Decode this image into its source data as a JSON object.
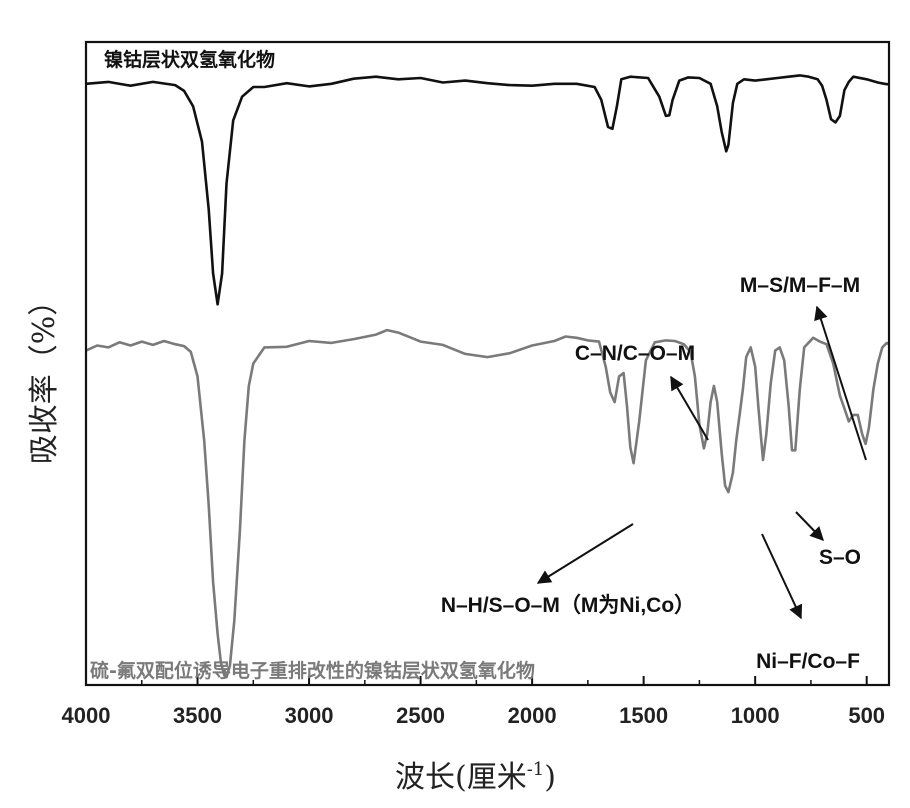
{
  "chart_data": {
    "type": "line",
    "title": "",
    "xlabel": "波长(厘米",
    "xlabel_sup": "-1",
    "xlabel_close": ")",
    "ylabel": "吸收率（%）",
    "xlim": [
      4000,
      400
    ],
    "xticks": [
      4000,
      3500,
      3000,
      2500,
      2000,
      1500,
      1000,
      500
    ],
    "ylim": [
      0,
      100
    ],
    "series": [
      {
        "name": "镍钴层状双氢氧化物",
        "color": "#111111",
        "x": [
          4000,
          3900,
          3800,
          3700,
          3600,
          3560,
          3520,
          3480,
          3450,
          3430,
          3410,
          3390,
          3370,
          3340,
          3300,
          3250,
          3200,
          3100,
          3000,
          2900,
          2800,
          2700,
          2600,
          2500,
          2400,
          2300,
          2200,
          2100,
          2000,
          1900,
          1800,
          1720,
          1690,
          1660,
          1640,
          1620,
          1600,
          1560,
          1480,
          1430,
          1400,
          1385,
          1370,
          1340,
          1300,
          1250,
          1200,
          1170,
          1150,
          1130,
          1120,
          1100,
          1080,
          1050,
          1000,
          950,
          900,
          850,
          800,
          760,
          720,
          700,
          680,
          660,
          640,
          620,
          600,
          580,
          560,
          500,
          450,
          420,
          400
        ],
        "values": [
          93.5,
          93.8,
          93.2,
          93.8,
          93.3,
          92.4,
          90.0,
          84.5,
          74.0,
          64.0,
          59.2,
          64.0,
          78.0,
          87.8,
          91.5,
          93.0,
          93.0,
          93.6,
          93.1,
          93.5,
          94.3,
          94.6,
          94.2,
          94.4,
          93.7,
          94.0,
          93.6,
          93.3,
          93.2,
          93.5,
          93.5,
          93.0,
          91.0,
          86.8,
          86.5,
          90.0,
          94.2,
          94.6,
          94.4,
          91.5,
          88.5,
          88.6,
          91.0,
          94.0,
          94.5,
          94.4,
          93.5,
          90.0,
          86.0,
          83.0,
          84.0,
          90.5,
          93.5,
          94.2,
          94.0,
          94.2,
          94.4,
          94.6,
          94.8,
          94.6,
          94.2,
          93.2,
          91.0,
          88.0,
          87.5,
          88.5,
          92.5,
          93.8,
          94.6,
          94.2,
          93.7,
          93.5,
          93.4
        ]
      },
      {
        "name": "硫-氟双配位诱导电子重排改性的镍钴层状双氢氧化物",
        "color": "#7a7a7a",
        "x": [
          4000,
          3950,
          3900,
          3850,
          3800,
          3750,
          3700,
          3650,
          3600,
          3560,
          3530,
          3500,
          3470,
          3450,
          3430,
          3410,
          3395,
          3380,
          3370,
          3355,
          3335,
          3310,
          3290,
          3270,
          3250,
          3200,
          3100,
          3000,
          2900,
          2800,
          2700,
          2650,
          2600,
          2500,
          2400,
          2300,
          2200,
          2100,
          2000,
          1900,
          1850,
          1800,
          1750,
          1700,
          1670,
          1650,
          1630,
          1610,
          1590,
          1575,
          1560,
          1545,
          1520,
          1490,
          1450,
          1400,
          1360,
          1320,
          1290,
          1270,
          1250,
          1230,
          1215,
          1200,
          1185,
          1170,
          1150,
          1135,
          1120,
          1100,
          1085,
          1070,
          1055,
          1040,
          1020,
          1000,
          985,
          965,
          950,
          930,
          910,
          890,
          870,
          850,
          835,
          820,
          800,
          780,
          740,
          710,
          680,
          650,
          620,
          600,
          580,
          560,
          540,
          520,
          505,
          490,
          470,
          450,
          430,
          410,
          400
        ],
        "values": [
          52.0,
          52.8,
          52.5,
          53.3,
          52.8,
          53.4,
          52.9,
          53.5,
          53.0,
          52.7,
          51.8,
          48.0,
          38.0,
          28.0,
          16.0,
          8.0,
          3.5,
          1.5,
          1.2,
          3.0,
          10.0,
          24.0,
          38.0,
          46.5,
          50.0,
          52.5,
          52.6,
          53.5,
          53.2,
          53.8,
          54.5,
          55.2,
          54.8,
          53.4,
          52.9,
          51.5,
          51.0,
          51.6,
          52.8,
          53.5,
          54.2,
          54.0,
          53.6,
          53.4,
          49.5,
          45.5,
          44.0,
          48.0,
          48.5,
          43.5,
          37.0,
          34.5,
          41.0,
          50.5,
          53.3,
          53.6,
          53.5,
          53.0,
          51.8,
          48.0,
          40.5,
          36.8,
          39.0,
          44.0,
          46.5,
          44.0,
          36.0,
          31.0,
          30.0,
          33.0,
          38.0,
          42.0,
          46.0,
          51.0,
          52.5,
          49.5,
          43.0,
          35.0,
          39.0,
          47.0,
          52.0,
          52.5,
          50.5,
          43.5,
          36.5,
          36.5,
          46.0,
          52.5,
          54.0,
          53.4,
          53.0,
          50.0,
          45.0,
          43.0,
          41.0,
          42.0,
          42.0,
          39.0,
          37.5,
          40.0,
          46.0,
          50.0,
          52.5,
          53.2,
          53.0
        ]
      }
    ],
    "annotations": [
      {
        "text": "M–S/M–F–M",
        "x": 505,
        "y": 67.5
      },
      {
        "text": "C–N/C–O–M",
        "x": 1200,
        "y": 59.5
      },
      {
        "text": "N–H/S–O–M（M为Ni,Co）",
        "x": 1560,
        "y": 15.5
      },
      {
        "text": "S–O",
        "x": 800,
        "y": 24.5
      },
      {
        "text": "Ni–F/Co–F",
        "x": 990,
        "y": 6.0
      }
    ]
  }
}
